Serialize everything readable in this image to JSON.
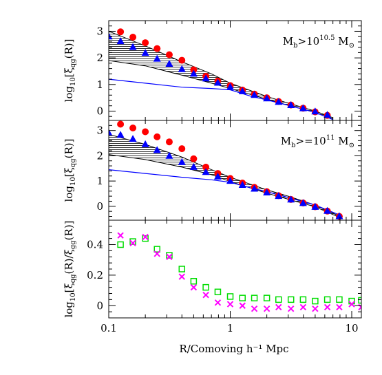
{
  "chart_data": [
    {
      "type": "scatter",
      "panel": "top",
      "annotation": "M_b>10^10.5 M_⊙",
      "ylabel": "log10[ξqg(R)]",
      "xscale": "log",
      "xlim": [
        0.1,
        12
      ],
      "ylim": [
        -0.35,
        3.4
      ],
      "yticks": [
        "0",
        "1",
        "2",
        "3"
      ],
      "series": [
        {
          "marker": "circle",
          "color": "#ff0000",
          "points": [
            [
              0.125,
              2.98
            ],
            [
              0.158,
              2.78
            ],
            [
              0.2,
              2.57
            ],
            [
              0.25,
              2.35
            ],
            [
              0.315,
              2.12
            ],
            [
              0.4,
              1.91
            ],
            [
              0.5,
              1.55
            ],
            [
              0.63,
              1.31
            ],
            [
              0.79,
              1.13
            ],
            [
              1.0,
              0.96
            ],
            [
              1.26,
              0.79
            ],
            [
              1.58,
              0.64
            ],
            [
              2.0,
              0.5
            ],
            [
              2.5,
              0.36
            ],
            [
              3.16,
              0.23
            ],
            [
              3.98,
              0.11
            ],
            [
              5.0,
              -0.03
            ],
            [
              6.3,
              -0.16
            ]
          ]
        },
        {
          "marker": "triangle",
          "color": "#0000ff",
          "points": [
            [
              0.1,
              2.8
            ],
            [
              0.125,
              2.62
            ],
            [
              0.158,
              2.4
            ],
            [
              0.2,
              2.18
            ],
            [
              0.25,
              1.96
            ],
            [
              0.315,
              1.77
            ],
            [
              0.4,
              1.57
            ],
            [
              0.5,
              1.4
            ],
            [
              0.63,
              1.22
            ],
            [
              0.79,
              1.06
            ],
            [
              1.0,
              0.9
            ],
            [
              1.26,
              0.74
            ],
            [
              1.58,
              0.6
            ],
            [
              2.0,
              0.47
            ],
            [
              2.5,
              0.34
            ],
            [
              3.16,
              0.22
            ],
            [
              3.98,
              0.1
            ],
            [
              5.0,
              -0.02
            ],
            [
              6.3,
              -0.15
            ]
          ]
        },
        {
          "line": "band-upper",
          "color": "#000000",
          "points": [
            [
              0.1,
              3.0
            ],
            [
              0.2,
              2.45
            ],
            [
              0.4,
              1.85
            ],
            [
              0.7,
              1.4
            ],
            [
              1.0,
              1.05
            ],
            [
              2.0,
              0.55
            ],
            [
              3.0,
              0.3
            ],
            [
              5.0,
              0.0
            ],
            [
              7.0,
              -0.25
            ]
          ]
        },
        {
          "line": "band-lower",
          "color": "#000000",
          "points": [
            [
              0.1,
              1.9
            ],
            [
              0.2,
              1.7
            ],
            [
              0.4,
              1.35
            ],
            [
              0.7,
              1.05
            ],
            [
              1.0,
              0.85
            ],
            [
              2.0,
              0.45
            ],
            [
              3.0,
              0.22
            ],
            [
              5.0,
              -0.05
            ],
            [
              7.0,
              -0.3
            ]
          ]
        },
        {
          "line": "model",
          "color": "#0000ff",
          "points": [
            [
              0.1,
              1.2
            ],
            [
              0.2,
              1.05
            ],
            [
              0.4,
              0.9
            ],
            [
              0.7,
              0.85
            ],
            [
              1.0,
              0.8
            ],
            [
              1.5,
              0.55
            ],
            [
              2.0,
              0.42
            ],
            [
              3.0,
              0.22
            ],
            [
              5.0,
              -0.05
            ],
            [
              7.0,
              -0.32
            ]
          ]
        }
      ]
    },
    {
      "type": "scatter",
      "panel": "middle",
      "annotation": "M_b>=10^11 M_⊙",
      "ylabel": "log10[ξqg(R)]",
      "xscale": "log",
      "xlim": [
        0.1,
        12
      ],
      "ylim": [
        -0.55,
        3.4
      ],
      "yticks": [
        "0",
        "1",
        "2",
        "3"
      ],
      "series": [
        {
          "marker": "circle",
          "color": "#ff0000",
          "points": [
            [
              0.125,
              3.25
            ],
            [
              0.158,
              3.1
            ],
            [
              0.2,
              2.95
            ],
            [
              0.25,
              2.75
            ],
            [
              0.315,
              2.55
            ],
            [
              0.4,
              2.28
            ],
            [
              0.5,
              1.88
            ],
            [
              0.63,
              1.55
            ],
            [
              0.79,
              1.3
            ],
            [
              1.0,
              1.1
            ],
            [
              1.26,
              0.92
            ],
            [
              1.58,
              0.75
            ],
            [
              2.0,
              0.58
            ],
            [
              2.5,
              0.42
            ],
            [
              3.16,
              0.27
            ],
            [
              3.98,
              0.13
            ],
            [
              5.0,
              -0.02
            ],
            [
              6.3,
              -0.19
            ],
            [
              7.9,
              -0.4
            ]
          ]
        },
        {
          "marker": "triangle",
          "color": "#0000ff",
          "points": [
            [
              0.1,
              2.9
            ],
            [
              0.125,
              2.82
            ],
            [
              0.158,
              2.66
            ],
            [
              0.2,
              2.45
            ],
            [
              0.25,
              2.22
            ],
            [
              0.315,
              1.99
            ],
            [
              0.4,
              1.74
            ],
            [
              0.5,
              1.55
            ],
            [
              0.63,
              1.35
            ],
            [
              0.79,
              1.17
            ],
            [
              1.0,
              1.0
            ],
            [
              1.26,
              0.84
            ],
            [
              1.58,
              0.69
            ],
            [
              2.0,
              0.54
            ],
            [
              2.5,
              0.4
            ],
            [
              3.16,
              0.26
            ],
            [
              3.98,
              0.12
            ],
            [
              5.0,
              -0.03
            ],
            [
              6.3,
              -0.19
            ],
            [
              7.9,
              -0.4
            ]
          ]
        },
        {
          "line": "band-upper",
          "color": "#000000",
          "points": [
            [
              0.1,
              2.85
            ],
            [
              0.2,
              2.45
            ],
            [
              0.4,
              1.95
            ],
            [
              0.7,
              1.45
            ],
            [
              1.0,
              1.15
            ],
            [
              2.0,
              0.65
            ],
            [
              3.0,
              0.4
            ],
            [
              5.0,
              0.05
            ],
            [
              8.0,
              -0.4
            ]
          ]
        },
        {
          "line": "band-lower",
          "color": "#000000",
          "points": [
            [
              0.1,
              2.05
            ],
            [
              0.2,
              1.85
            ],
            [
              0.4,
              1.55
            ],
            [
              0.7,
              1.25
            ],
            [
              1.0,
              0.98
            ],
            [
              2.0,
              0.52
            ],
            [
              3.0,
              0.28
            ],
            [
              5.0,
              -0.02
            ],
            [
              8.0,
              -0.45
            ]
          ]
        },
        {
          "line": "model",
          "color": "#0000ff",
          "points": [
            [
              0.1,
              1.45
            ],
            [
              0.2,
              1.3
            ],
            [
              0.4,
              1.15
            ],
            [
              0.7,
              1.05
            ],
            [
              1.0,
              0.95
            ],
            [
              1.5,
              0.72
            ],
            [
              2.0,
              0.58
            ],
            [
              3.0,
              0.35
            ],
            [
              5.0,
              0.05
            ],
            [
              8.0,
              -0.35
            ]
          ]
        }
      ]
    },
    {
      "type": "scatter",
      "panel": "bottom",
      "xlabel": "R/Comoving h⁻¹ Mpc",
      "ylabel": "log10[ξqg(R)/ξgg(R)]",
      "xscale": "log",
      "xlim": [
        0.1,
        12
      ],
      "ylim": [
        -0.08,
        0.56
      ],
      "yticks": [
        "0",
        "0.2",
        "0.4"
      ],
      "xticks": [
        "0.1",
        "1",
        "10"
      ],
      "series": [
        {
          "marker": "square",
          "color": "#00dd00",
          "points": [
            [
              0.125,
              0.4
            ],
            [
              0.158,
              0.42
            ],
            [
              0.2,
              0.44
            ],
            [
              0.25,
              0.37
            ],
            [
              0.315,
              0.33
            ],
            [
              0.4,
              0.24
            ],
            [
              0.5,
              0.16
            ],
            [
              0.63,
              0.12
            ],
            [
              0.79,
              0.09
            ],
            [
              1.0,
              0.06
            ],
            [
              1.26,
              0.05
            ],
            [
              1.58,
              0.05
            ],
            [
              2.0,
              0.05
            ],
            [
              2.5,
              0.04
            ],
            [
              3.16,
              0.04
            ],
            [
              3.98,
              0.04
            ],
            [
              5.0,
              0.03
            ],
            [
              6.3,
              0.04
            ],
            [
              7.9,
              0.04
            ],
            [
              10.0,
              0.03
            ],
            [
              12.0,
              0.035
            ]
          ]
        },
        {
          "marker": "cross",
          "color": "#ff00ff",
          "points": [
            [
              0.125,
              0.46
            ],
            [
              0.158,
              0.41
            ],
            [
              0.2,
              0.45
            ],
            [
              0.25,
              0.34
            ],
            [
              0.315,
              0.32
            ],
            [
              0.4,
              0.19
            ],
            [
              0.5,
              0.12
            ],
            [
              0.63,
              0.07
            ],
            [
              0.79,
              0.02
            ],
            [
              1.0,
              0.01
            ],
            [
              1.26,
              0.0
            ],
            [
              1.58,
              -0.02
            ],
            [
              2.0,
              -0.02
            ],
            [
              2.5,
              -0.01
            ],
            [
              3.16,
              -0.02
            ],
            [
              3.98,
              -0.01
            ],
            [
              5.0,
              -0.02
            ],
            [
              6.3,
              -0.01
            ],
            [
              7.9,
              -0.01
            ],
            [
              10.0,
              0.01
            ],
            [
              12.0,
              -0.01
            ]
          ]
        }
      ]
    }
  ]
}
